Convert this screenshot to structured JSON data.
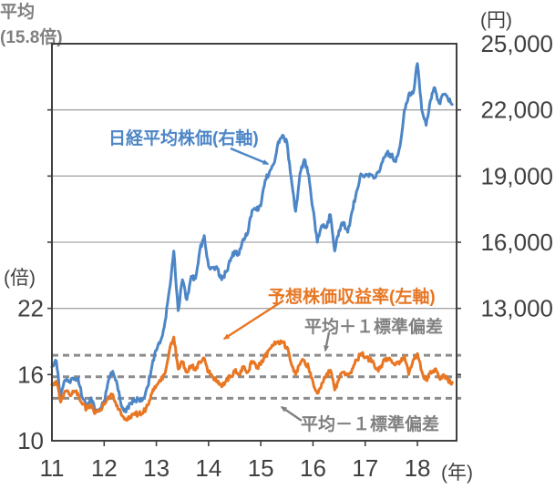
{
  "chart_data": {
    "type": "line",
    "title": "",
    "x_axis": {
      "unit_label": "(年)",
      "ticks": [
        11,
        12,
        13,
        14,
        15,
        16,
        17,
        18
      ],
      "min": 11,
      "max": 18.75,
      "frequency": "monthly",
      "points_start_label": 11
    },
    "left_axis": {
      "unit_label": "(倍)",
      "ticks": [
        22,
        16,
        10
      ],
      "min": 10,
      "max": 46
    },
    "right_axis": {
      "unit_label": "(円)",
      "ticks": [
        25000,
        22000,
        19000,
        16000,
        13000
      ],
      "gridline_values": [
        22000,
        19000,
        16000,
        13000
      ],
      "min": 7000,
      "max": 25000
    },
    "series": [
      {
        "id": "nikkei",
        "name": "日経平均株価(右軸)",
        "axis": "right",
        "unit": "円",
        "color": "#4D86C6",
        "values": [
          10350,
          10620,
          9000,
          9750,
          9650,
          9780,
          9850,
          8950,
          8650,
          8950,
          8400,
          8450,
          8800,
          9750,
          10150,
          9550,
          8550,
          8300,
          8700,
          8850,
          8870,
          8930,
          9450,
          10400,
          11100,
          11550,
          12400,
          13850,
          15600,
          12900,
          14300,
          13400,
          14450,
          14350,
          15650,
          16300,
          14900,
          14850,
          14830,
          14300,
          14650,
          15150,
          15600,
          15450,
          16150,
          16400,
          17450,
          17450,
          17650,
          18800,
          19200,
          19550,
          20550,
          20850,
          20550,
          18900,
          17400,
          19100,
          19750,
          19050,
          17500,
          16000,
          16750,
          16650,
          17250,
          15600,
          16550,
          16900,
          16450,
          17400,
          18300,
          19100,
          19050,
          19100,
          18900,
          19200,
          19650,
          20050,
          19950,
          19650,
          20350,
          22000,
          22700,
          22750,
          24100,
          22000,
          21300,
          22450,
          23000,
          22300,
          22700,
          22500,
          22250
        ]
      },
      {
        "id": "per",
        "name": "予想株価収益率(左軸)",
        "axis": "left",
        "unit": "倍",
        "color": "#E87623",
        "values": [
          15.1,
          15.4,
          13.5,
          14.5,
          14.2,
          14.4,
          14.3,
          13.3,
          12.9,
          13.3,
          12.5,
          12.7,
          13.3,
          14.0,
          14.2,
          13.2,
          12.3,
          12.0,
          12.2,
          12.5,
          12.4,
          12.6,
          13.2,
          14.3,
          15.0,
          15.4,
          16.1,
          18.2,
          19.4,
          16.5,
          17.1,
          16.2,
          16.8,
          16.4,
          17.1,
          17.5,
          16.2,
          15.8,
          15.3,
          14.9,
          15.4,
          15.8,
          16.3,
          16.0,
          16.7,
          16.2,
          17.2,
          16.6,
          16.9,
          17.6,
          18.3,
          18.7,
          19.0,
          18.9,
          18.5,
          17.0,
          16.0,
          16.9,
          17.3,
          16.6,
          15.3,
          14.3,
          15.2,
          15.9,
          16.4,
          14.6,
          15.6,
          16.2,
          15.9,
          16.5,
          17.3,
          17.9,
          17.6,
          17.4,
          17.0,
          16.3,
          17.0,
          17.5,
          17.3,
          16.9,
          17.2,
          17.7,
          16.0,
          17.3,
          17.9,
          16.3,
          15.5,
          16.3,
          16.5,
          15.7,
          16.0,
          15.5,
          15.3
        ]
      }
    ],
    "reference_lines": {
      "mean_value": 15.8,
      "plus_1sd_value": 17.75,
      "minus_1sd_value": 13.85,
      "mean_label": "平均",
      "mean_value_label": "(15.8倍)",
      "plus_1sd_label": "平均＋１標準偏差",
      "minus_1sd_label": "平均－１標準偏差",
      "style": "dashed"
    },
    "colors": {
      "grid": "#A6A6A6",
      "frame": "#404040",
      "dashed": "#8C8C8C",
      "axis_text": "#404040",
      "annotation_gray": "#808080"
    },
    "legend_position": "annotations-on-plot",
    "grid": true
  }
}
